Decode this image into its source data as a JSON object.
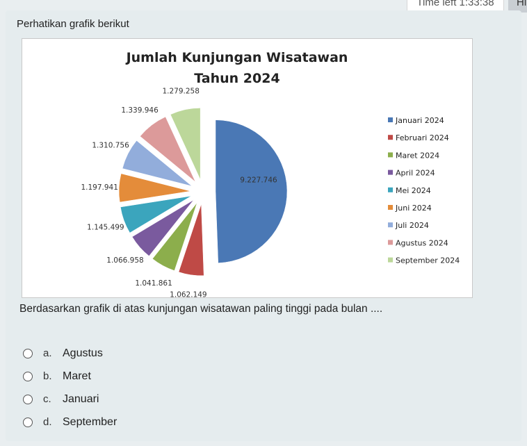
{
  "header": {
    "time_left": "Time left 1:33:38",
    "hide_label": "Hi"
  },
  "question": {
    "prompt": "Perhatikan grafik berikut",
    "text": "Berdasarkan grafik di atas kunjungan wisatawan paling tinggi pada bulan ....",
    "options": [
      {
        "letter": "a.",
        "label": "Agustus"
      },
      {
        "letter": "b.",
        "label": "Maret"
      },
      {
        "letter": "c.",
        "label": "Januari"
      },
      {
        "letter": "d.",
        "label": "September"
      }
    ]
  },
  "chart_data": {
    "type": "pie",
    "title_line1": "Jumlah Kunjungan Wisatawan",
    "title_line2": "Tahun 2024",
    "legend_position": "right",
    "slices": [
      {
        "label": "Januari 2024",
        "value": 9227746,
        "value_label": "9.227.746",
        "color": "#4a78b5"
      },
      {
        "label": "Februari 2024",
        "value": 1062149,
        "value_label": "1.062.149",
        "color": "#bf4a46"
      },
      {
        "label": "Maret 2024",
        "value": 1041861,
        "value_label": "1.041.861",
        "color": "#8cae4c"
      },
      {
        "label": "April 2024",
        "value": 1066958,
        "value_label": "1.066.958",
        "color": "#7a5a9e"
      },
      {
        "label": "Mei 2024",
        "value": 1145499,
        "value_label": "1.145.499",
        "color": "#3ba5bd"
      },
      {
        "label": "Juni 2024",
        "value": 1197941,
        "value_label": "1.197.941",
        "color": "#e48c3a"
      },
      {
        "label": "Juli 2024",
        "value": 1310756,
        "value_label": "1.310.756",
        "color": "#92addb"
      },
      {
        "label": "Agustus 2024",
        "value": 1339946,
        "value_label": "1.339.946",
        "color": "#dc9a9a"
      },
      {
        "label": "September 2024",
        "value": 1279258,
        "value_label": "1.279.258",
        "color": "#bcd79a"
      }
    ]
  }
}
